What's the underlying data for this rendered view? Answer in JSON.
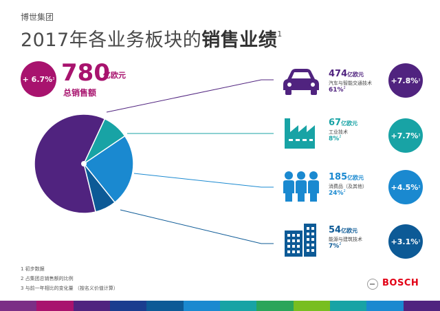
{
  "header": {
    "company": "博世集团",
    "title_prefix": "2017年各业务板块的",
    "title_bold": "销售业绩",
    "title_sup": "1"
  },
  "total": {
    "change": "+ 6.7%",
    "change_sup": "3",
    "value": "780",
    "unit": "亿欧元",
    "label": "总销售额",
    "color": "#a8136e"
  },
  "chart_data": {
    "type": "pie",
    "categories": [
      "汽车与智能交通技术",
      "工业技术",
      "消费品（及其他）",
      "能源与建筑技术"
    ],
    "values": [
      474,
      67,
      185,
      54
    ],
    "unit": "亿欧元",
    "shares": [
      "61%",
      "8%",
      "24%",
      "7%"
    ],
    "colors": [
      "#50237f",
      "#18a3a5",
      "#1a89d0",
      "#0d5a96"
    ],
    "legend": "right"
  },
  "segments": [
    {
      "value": "474",
      "unit": "亿欧元",
      "name": "汽车与智能交通技术",
      "share": "61%",
      "share_sup": "2",
      "change": "+7.8%",
      "change_sup": "3",
      "color": "#50237f",
      "icon": "car-icon"
    },
    {
      "value": "67",
      "unit": "亿欧元",
      "name": "工业技术",
      "share": "8%",
      "share_sup": "2",
      "change": "+7.7%",
      "change_sup": "3",
      "color": "#18a3a5",
      "icon": "factory-icon"
    },
    {
      "value": "185",
      "unit": "亿欧元",
      "name": "消费品（及其他）",
      "share": "24%",
      "share_sup": "2",
      "change": "+4.5%",
      "change_sup": "3",
      "color": "#1a89d0",
      "icon": "people-icon"
    },
    {
      "value": "54",
      "unit": "亿欧元",
      "name": "能源与建筑技术",
      "share": "7%",
      "share_sup": "2",
      "change": "+3.1%",
      "change_sup": "3",
      "color": "#0d5a96",
      "icon": "building-icon"
    }
  ],
  "footnotes": [
    "1 初步数据",
    "2 占集团总销售额的比例",
    "3 与前一年相比的变化量 （按名义价值计算）"
  ],
  "brand": {
    "name": "BOSCH",
    "color": "#e20015",
    "logo_icon": "bosch-armature-icon"
  },
  "stripe_colors": [
    "#7b2f86",
    "#a8136e",
    "#50237f",
    "#1a3d8f",
    "#0d5a96",
    "#1a89d0",
    "#18a3a5",
    "#2aa55a",
    "#78be20",
    "#18a3a5",
    "#1a89d0",
    "#50237f"
  ]
}
